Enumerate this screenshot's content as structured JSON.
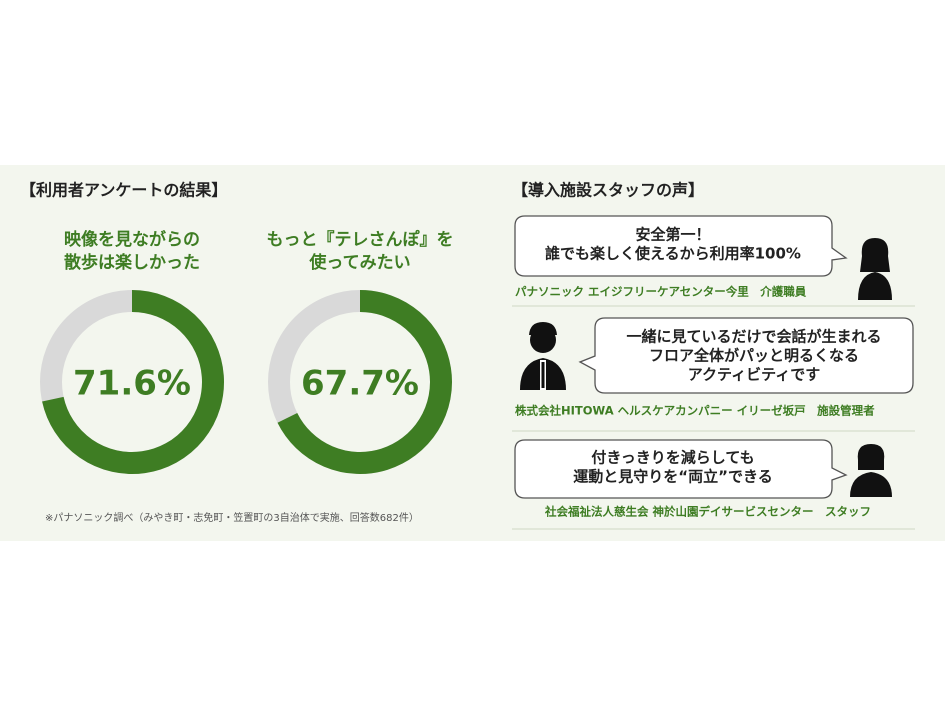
{
  "chart_data": [
    {
      "type": "donut",
      "title": [
        "映像を見ながらの",
        "散歩は楽しかった"
      ],
      "values": [
        71.6
      ],
      "value_labels": [
        "71.6%"
      ],
      "color": "#3e7d23",
      "track_color": "#d9d9d9"
    },
    {
      "type": "donut",
      "title": [
        "もっと『テレさんぽ』を",
        "使ってみたい"
      ],
      "values": [
        67.7
      ],
      "value_labels": [
        "67.7%"
      ],
      "color": "#3e7d23",
      "track_color": "#d9d9d9"
    }
  ],
  "left": {
    "heading": "【利用者アンケートの結果】",
    "note": "※パナソニック調べ（みやき町・志免町・笠置町の3自治体で実施、回答数682件）"
  },
  "right": {
    "heading": "【導入施設スタッフの声】",
    "quotes": [
      {
        "lines": [
          "安全第一！",
          "誰でも楽しく使えるから利用率100%"
        ],
        "caption": "パナソニック エイジフリーケアセンター今里　介護職員"
      },
      {
        "lines": [
          "一緒に見ているだけで会話が生まれる",
          "フロア全体がパッと明るくなる",
          "アクティビティです"
        ],
        "caption": "株式会社HITOWA ヘルスケアカンパニー イリーゼ坂戸　施設管理者"
      },
      {
        "lines": [
          "付きっきりを減らしても",
          "運動と見守りを“両立”できる"
        ],
        "caption": "社会福祉法人慈生会 神於山園デイサービスセンター　スタッフ"
      }
    ]
  }
}
